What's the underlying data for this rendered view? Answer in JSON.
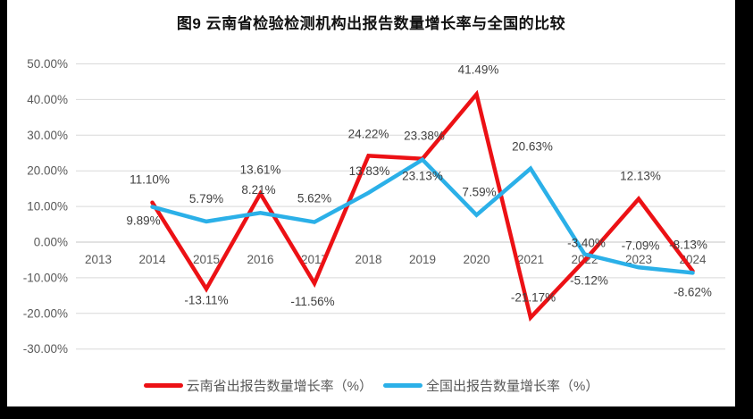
{
  "window": {
    "background": "#000000",
    "canvas_background": "#ffffff"
  },
  "chart_data": {
    "type": "line",
    "title": "图9 云南省检验检测机构出报告数量增长率与全国的比较",
    "categories": [
      "2013",
      "2014",
      "2015",
      "2016",
      "2017",
      "2018",
      "2019",
      "2020",
      "2021",
      "2022",
      "2023",
      "2024"
    ],
    "y_tick_values": [
      50,
      40,
      30,
      20,
      10,
      0,
      -10,
      -20,
      -30
    ],
    "y_tick_labels": [
      "50.00%",
      "40.00%",
      "30.00%",
      "20.00%",
      "10.00%",
      "0.00%",
      "-10.00%",
      "-20.00%",
      "-30.00%"
    ],
    "ylim": [
      -30,
      50
    ],
    "grid": true,
    "legend_position": "bottom",
    "colors": {
      "grid": "#d9d9d9",
      "zero_line": "#c6c6c6",
      "tick_text": "#595959",
      "data_label_text": "#3f3f3f"
    },
    "series": [
      {
        "name": "云南省出报告数量增长率（%）",
        "color": "#ec1115",
        "start_category": "2014",
        "values": [
          11.1,
          -13.11,
          13.61,
          -11.56,
          24.22,
          23.38,
          41.49,
          -21.17,
          -5.12,
          12.13,
          -8.13
        ],
        "labels": [
          "11.10%",
          "-13.11%",
          "13.61%",
          "-11.56%",
          "24.22%",
          "23.38%",
          "41.49%",
          "-21.17%",
          "-5.12%",
          "12.13%",
          "-8.13%"
        ],
        "label_dx": [
          -3,
          0,
          0,
          -2,
          0,
          2,
          2,
          3,
          5,
          2,
          -5
        ],
        "label_dy": [
          -26,
          12,
          -27,
          20,
          -25,
          -26,
          -28,
          -23,
          22,
          -26,
          -30
        ]
      },
      {
        "name": "全国出报告数量增长率（%）",
        "color": "#2bb0e8",
        "start_category": "2014",
        "values": [
          9.89,
          5.79,
          8.21,
          5.62,
          13.83,
          23.13,
          7.59,
          20.63,
          -3.4,
          -7.09,
          -8.62
        ],
        "labels": [
          "9.89%",
          "5.79%",
          "8.21%",
          "5.62%",
          "13.83%",
          "23.13%",
          "7.59%",
          "20.63%",
          "-3.40%",
          "-7.09%",
          "-8.62%"
        ],
        "label_dx": [
          -10,
          0,
          -2,
          0,
          1,
          0,
          3,
          2,
          2,
          2,
          0
        ],
        "label_dy": [
          15,
          -26,
          -26,
          -27,
          -25,
          18,
          -26,
          -25,
          -13,
          -25,
          21
        ]
      }
    ]
  }
}
